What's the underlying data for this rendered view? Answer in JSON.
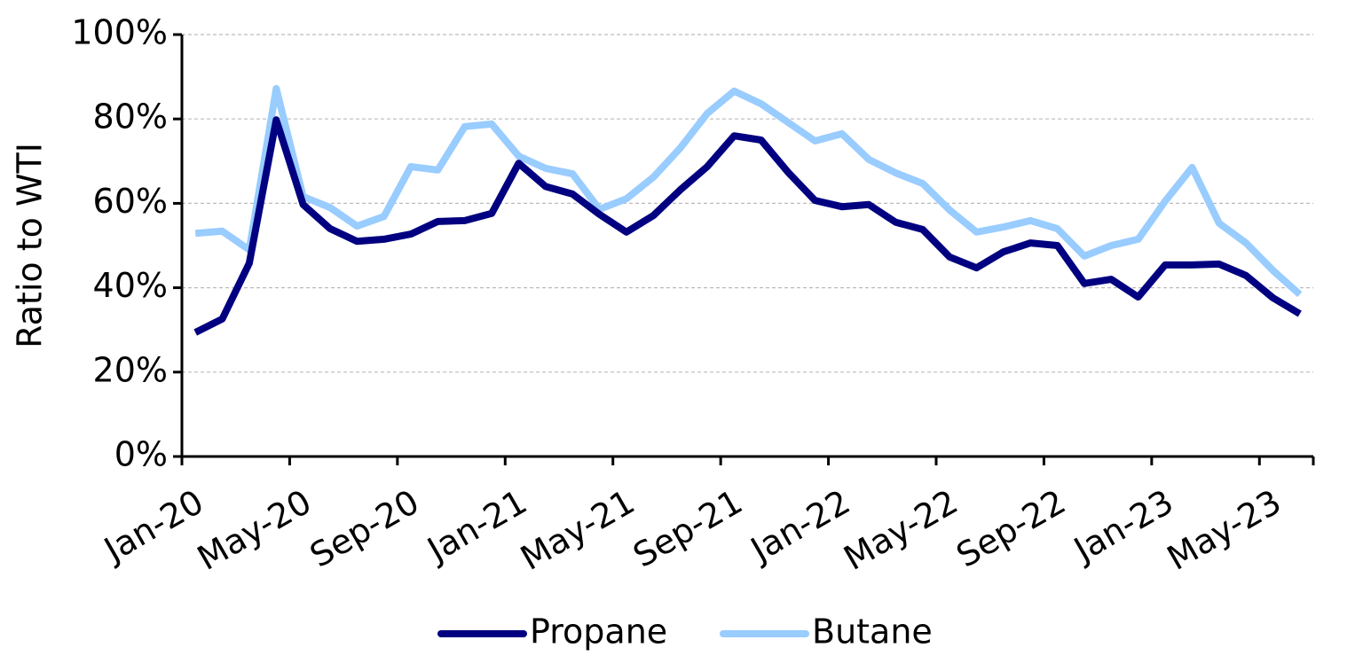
{
  "chart_data": {
    "type": "line",
    "y_label": "Ratio to WTI",
    "categories": [
      "Jan-20",
      null,
      null,
      null,
      "May-20",
      null,
      null,
      null,
      "Sep-20",
      null,
      null,
      null,
      "Jan-21",
      null,
      null,
      null,
      "May-21",
      null,
      null,
      null,
      "Sep-21",
      null,
      null,
      null,
      "Jan-22",
      null,
      null,
      null,
      "May-22",
      null,
      null,
      null,
      "Sep-22",
      null,
      null,
      null,
      "Jan-23",
      null,
      null,
      null,
      "May-23",
      null
    ],
    "series": [
      {
        "name": "Propane",
        "color": "#000080",
        "values": [
          29.4,
          32.6,
          45.8,
          79.8,
          59.7,
          54,
          51,
          51.5,
          52.7,
          55.7,
          55.9,
          57.6,
          69.5,
          64,
          62.2,
          57.4,
          53.2,
          57.1,
          63.2,
          68.7,
          76,
          75,
          67.4,
          60.7,
          59.2,
          59.7,
          55.5,
          53.8,
          47.3,
          44.7,
          48.5,
          50.6,
          50,
          41,
          42,
          37.8,
          45.4,
          45.4,
          45.6,
          42.9,
          37.6,
          33.8
        ]
      },
      {
        "name": "Butane",
        "color": "#99ccff",
        "values": [
          52.9,
          53.4,
          49,
          87.2,
          61.6,
          59,
          54.6,
          56.9,
          68.7,
          67.9,
          78.2,
          78.8,
          71.2,
          68.3,
          67,
          58.6,
          61.1,
          66.2,
          73.1,
          81.3,
          86.6,
          83.6,
          79.2,
          74.8,
          76.5,
          70.4,
          67.2,
          64.7,
          58.4,
          53.2,
          54.4,
          55.9,
          54,
          47.5,
          50,
          51.5,
          60.5,
          68.5,
          55.3,
          50.6,
          44.1,
          38.4
        ]
      }
    ],
    "ylim": [
      0,
      100
    ],
    "yticks": [
      {
        "value": 0,
        "label": "0%"
      },
      {
        "value": 20,
        "label": "20%"
      },
      {
        "value": 40,
        "label": "40%"
      },
      {
        "value": 60,
        "label": "60%"
      },
      {
        "value": 80,
        "label": "80%"
      },
      {
        "value": 100,
        "label": "100%"
      }
    ],
    "grid": true,
    "legend": "bottom"
  }
}
